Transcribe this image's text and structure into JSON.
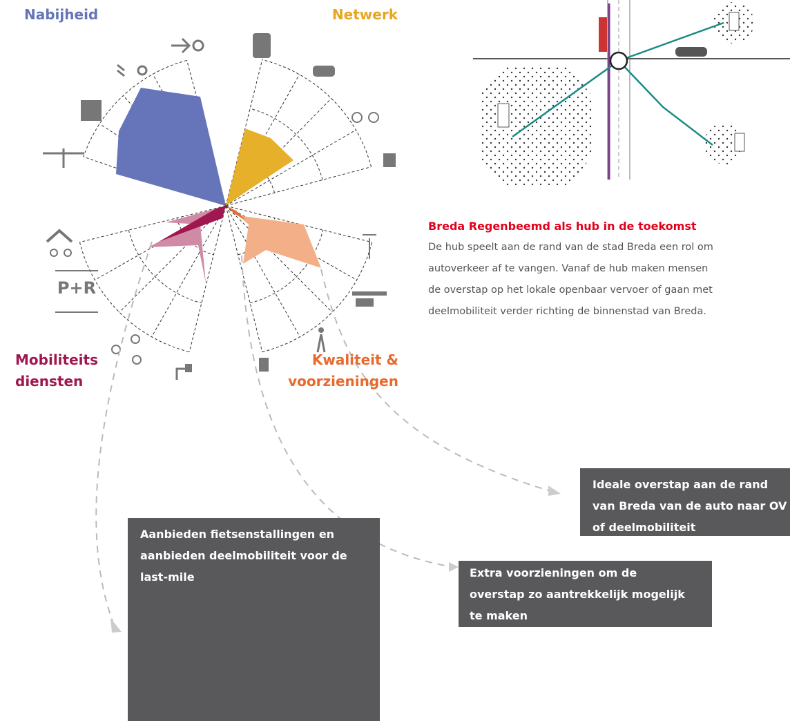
{
  "quadrants": {
    "nabijheid": "Nabijheid",
    "netwerk": "Netwerk",
    "mobiliteitsdiensten": [
      "Mobiliteits",
      "diensten"
    ],
    "kwaliteit": [
      "Kwaliteit &",
      "voorzieningen"
    ]
  },
  "icon_label": "P+R",
  "case": {
    "title": "Breda Regenbeemd als hub in de toekomst",
    "lines": [
      "De hub speelt aan de rand van de stad Breda een rol om",
      "autoverkeer af te vangen. Vanaf de hub maken mensen",
      "de overstap op het lokale openbaar vervoer of gaan met",
      "deelmobiliteit verder richting de binnenstad van Breda."
    ]
  },
  "callouts": [
    {
      "lines": [
        "Ideale overstap aan de rand",
        "van Breda van de auto naar OV",
        "of deelmobiliteit"
      ]
    },
    {
      "lines": [
        "Extra voorzieningen om de",
        "overstap zo aantrekkelijk mogelijk",
        "te maken"
      ]
    },
    {
      "lines": [
        "Aanbieden fietsenstallingen en",
        "aanbieden deelmobiliteit voor de",
        "last-mile"
      ]
    }
  ]
}
